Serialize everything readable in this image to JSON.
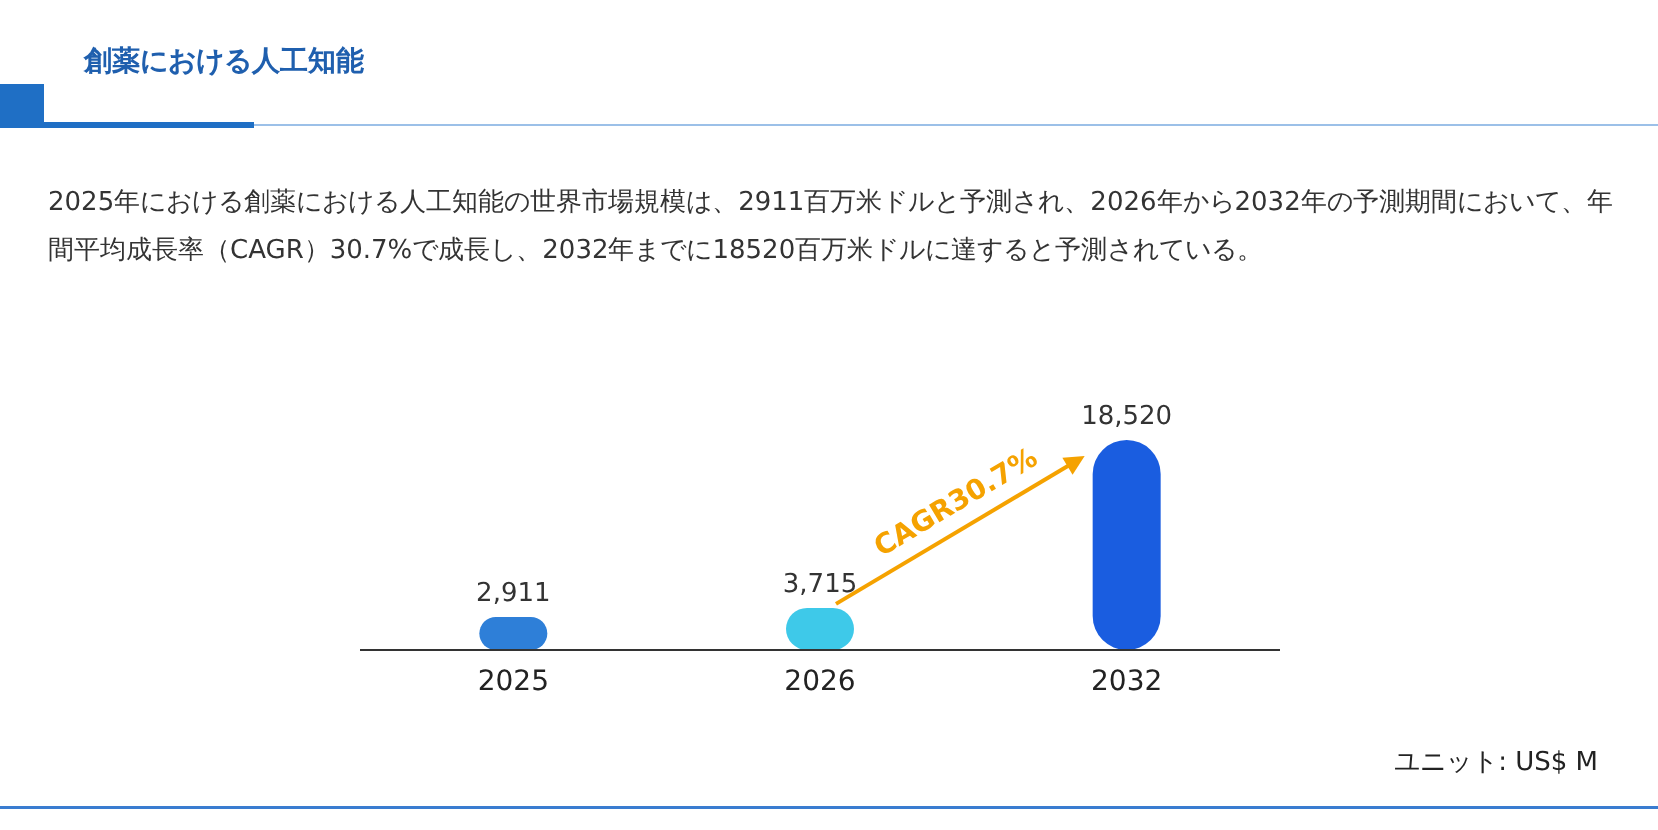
{
  "chart_data": {
    "type": "bar",
    "title": "創薬における人工知能",
    "subtitle": "2025年における創薬における人工知能の世界市場規模は、2911百万米ドルと予測され、2026年から2032年の予測期間において、年間平均成長率（CAGR）30.7%で成長し、2032年までに18520百万米ドルに達すると予測されている。",
    "categories": [
      "2025",
      "2026",
      "2032"
    ],
    "values": [
      2911,
      3715,
      18520
    ],
    "colors": [
      "#2e7fd8",
      "#3ec9e9",
      "#1a5de0"
    ],
    "value_labels": [
      "2,911",
      "3,715",
      "18,520"
    ],
    "annotations": [
      "CAGR30.7%",
      "ユニット: US$ M"
    ]
  }
}
